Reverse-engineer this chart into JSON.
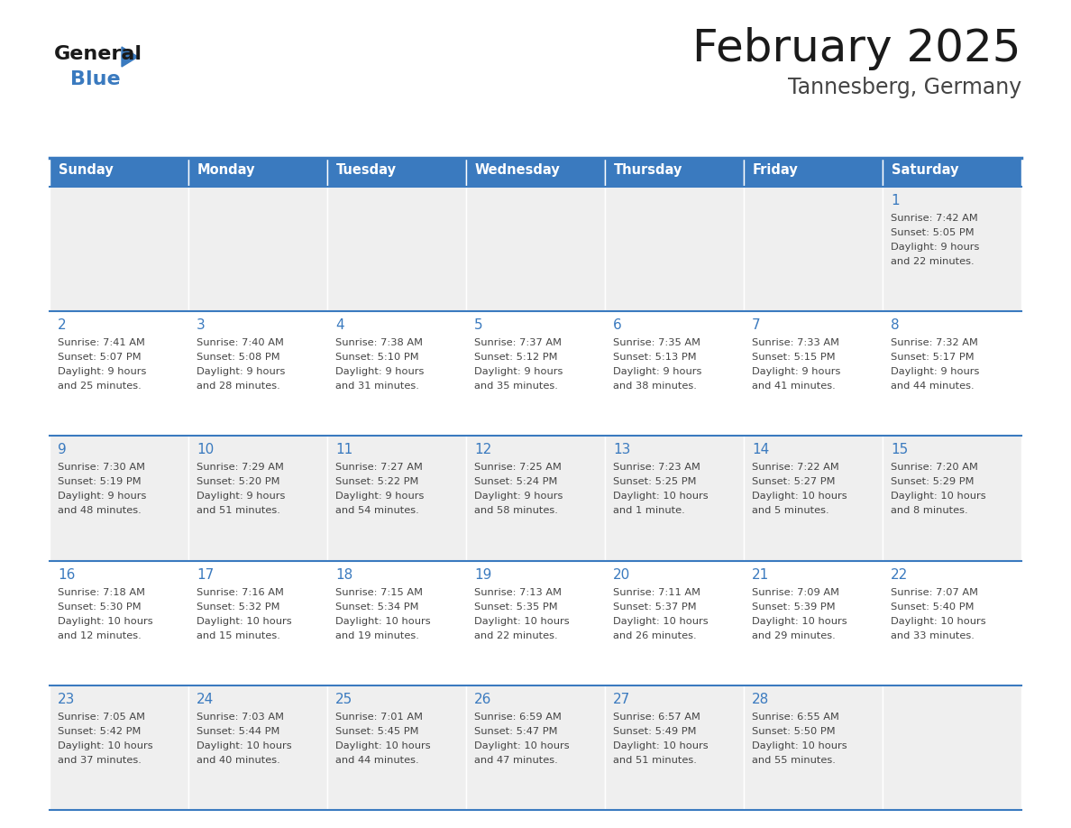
{
  "title": "February 2025",
  "subtitle": "Tannesberg, Germany",
  "header_color": "#3a7abf",
  "header_text_color": "#ffffff",
  "cell_bg_row0": "#efefef",
  "cell_bg_row1": "#ffffff",
  "cell_bg_row2": "#efefef",
  "cell_bg_row3": "#ffffff",
  "cell_bg_row4": "#efefef",
  "day_number_color": "#3a7abf",
  "text_color": "#444444",
  "border_color": "#3a7abf",
  "days_of_week": [
    "Sunday",
    "Monday",
    "Tuesday",
    "Wednesday",
    "Thursday",
    "Friday",
    "Saturday"
  ],
  "weeks": [
    [
      {
        "day": "",
        "sunrise": "",
        "sunset": "",
        "daylight": ""
      },
      {
        "day": "",
        "sunrise": "",
        "sunset": "",
        "daylight": ""
      },
      {
        "day": "",
        "sunrise": "",
        "sunset": "",
        "daylight": ""
      },
      {
        "day": "",
        "sunrise": "",
        "sunset": "",
        "daylight": ""
      },
      {
        "day": "",
        "sunrise": "",
        "sunset": "",
        "daylight": ""
      },
      {
        "day": "",
        "sunrise": "",
        "sunset": "",
        "daylight": ""
      },
      {
        "day": "1",
        "sunrise": "7:42 AM",
        "sunset": "5:05 PM",
        "daylight_line1": "9 hours",
        "daylight_line2": "and 22 minutes."
      }
    ],
    [
      {
        "day": "2",
        "sunrise": "7:41 AM",
        "sunset": "5:07 PM",
        "daylight_line1": "9 hours",
        "daylight_line2": "and 25 minutes."
      },
      {
        "day": "3",
        "sunrise": "7:40 AM",
        "sunset": "5:08 PM",
        "daylight_line1": "9 hours",
        "daylight_line2": "and 28 minutes."
      },
      {
        "day": "4",
        "sunrise": "7:38 AM",
        "sunset": "5:10 PM",
        "daylight_line1": "9 hours",
        "daylight_line2": "and 31 minutes."
      },
      {
        "day": "5",
        "sunrise": "7:37 AM",
        "sunset": "5:12 PM",
        "daylight_line1": "9 hours",
        "daylight_line2": "and 35 minutes."
      },
      {
        "day": "6",
        "sunrise": "7:35 AM",
        "sunset": "5:13 PM",
        "daylight_line1": "9 hours",
        "daylight_line2": "and 38 minutes."
      },
      {
        "day": "7",
        "sunrise": "7:33 AM",
        "sunset": "5:15 PM",
        "daylight_line1": "9 hours",
        "daylight_line2": "and 41 minutes."
      },
      {
        "day": "8",
        "sunrise": "7:32 AM",
        "sunset": "5:17 PM",
        "daylight_line1": "9 hours",
        "daylight_line2": "and 44 minutes."
      }
    ],
    [
      {
        "day": "9",
        "sunrise": "7:30 AM",
        "sunset": "5:19 PM",
        "daylight_line1": "9 hours",
        "daylight_line2": "and 48 minutes."
      },
      {
        "day": "10",
        "sunrise": "7:29 AM",
        "sunset": "5:20 PM",
        "daylight_line1": "9 hours",
        "daylight_line2": "and 51 minutes."
      },
      {
        "day": "11",
        "sunrise": "7:27 AM",
        "sunset": "5:22 PM",
        "daylight_line1": "9 hours",
        "daylight_line2": "and 54 minutes."
      },
      {
        "day": "12",
        "sunrise": "7:25 AM",
        "sunset": "5:24 PM",
        "daylight_line1": "9 hours",
        "daylight_line2": "and 58 minutes."
      },
      {
        "day": "13",
        "sunrise": "7:23 AM",
        "sunset": "5:25 PM",
        "daylight_line1": "10 hours",
        "daylight_line2": "and 1 minute."
      },
      {
        "day": "14",
        "sunrise": "7:22 AM",
        "sunset": "5:27 PM",
        "daylight_line1": "10 hours",
        "daylight_line2": "and 5 minutes."
      },
      {
        "day": "15",
        "sunrise": "7:20 AM",
        "sunset": "5:29 PM",
        "daylight_line1": "10 hours",
        "daylight_line2": "and 8 minutes."
      }
    ],
    [
      {
        "day": "16",
        "sunrise": "7:18 AM",
        "sunset": "5:30 PM",
        "daylight_line1": "10 hours",
        "daylight_line2": "and 12 minutes."
      },
      {
        "day": "17",
        "sunrise": "7:16 AM",
        "sunset": "5:32 PM",
        "daylight_line1": "10 hours",
        "daylight_line2": "and 15 minutes."
      },
      {
        "day": "18",
        "sunrise": "7:15 AM",
        "sunset": "5:34 PM",
        "daylight_line1": "10 hours",
        "daylight_line2": "and 19 minutes."
      },
      {
        "day": "19",
        "sunrise": "7:13 AM",
        "sunset": "5:35 PM",
        "daylight_line1": "10 hours",
        "daylight_line2": "and 22 minutes."
      },
      {
        "day": "20",
        "sunrise": "7:11 AM",
        "sunset": "5:37 PM",
        "daylight_line1": "10 hours",
        "daylight_line2": "and 26 minutes."
      },
      {
        "day": "21",
        "sunrise": "7:09 AM",
        "sunset": "5:39 PM",
        "daylight_line1": "10 hours",
        "daylight_line2": "and 29 minutes."
      },
      {
        "day": "22",
        "sunrise": "7:07 AM",
        "sunset": "5:40 PM",
        "daylight_line1": "10 hours",
        "daylight_line2": "and 33 minutes."
      }
    ],
    [
      {
        "day": "23",
        "sunrise": "7:05 AM",
        "sunset": "5:42 PM",
        "daylight_line1": "10 hours",
        "daylight_line2": "and 37 minutes."
      },
      {
        "day": "24",
        "sunrise": "7:03 AM",
        "sunset": "5:44 PM",
        "daylight_line1": "10 hours",
        "daylight_line2": "and 40 minutes."
      },
      {
        "day": "25",
        "sunrise": "7:01 AM",
        "sunset": "5:45 PM",
        "daylight_line1": "10 hours",
        "daylight_line2": "and 44 minutes."
      },
      {
        "day": "26",
        "sunrise": "6:59 AM",
        "sunset": "5:47 PM",
        "daylight_line1": "10 hours",
        "daylight_line2": "and 47 minutes."
      },
      {
        "day": "27",
        "sunrise": "6:57 AM",
        "sunset": "5:49 PM",
        "daylight_line1": "10 hours",
        "daylight_line2": "and 51 minutes."
      },
      {
        "day": "28",
        "sunrise": "6:55 AM",
        "sunset": "5:50 PM",
        "daylight_line1": "10 hours",
        "daylight_line2": "and 55 minutes."
      },
      {
        "day": "",
        "sunrise": "",
        "sunset": "",
        "daylight_line1": "",
        "daylight_line2": ""
      }
    ]
  ]
}
